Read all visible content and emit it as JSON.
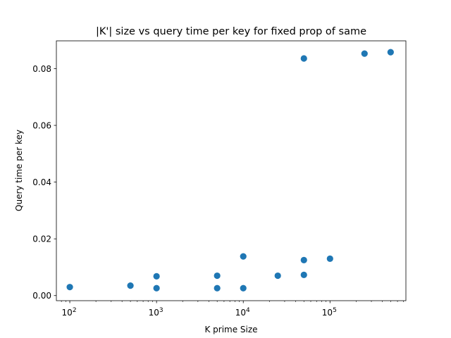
{
  "chart_data": {
    "type": "scatter",
    "title": "|K'| size vs query time per key for fixed prop of same",
    "xlabel": "K prime Size",
    "ylabel": "Query time per key",
    "xscale": "log",
    "xlim": [
      70,
      750000
    ],
    "ylim": [
      -0.0018,
      0.0898
    ],
    "grid": false,
    "point_color": "#1f77b4",
    "x_ticks": [
      {
        "value": 100,
        "base": "10",
        "exp": "2"
      },
      {
        "value": 1000,
        "base": "10",
        "exp": "3"
      },
      {
        "value": 10000,
        "base": "10",
        "exp": "4"
      },
      {
        "value": 100000,
        "base": "10",
        "exp": "5"
      }
    ],
    "y_ticks": [
      {
        "value": 0.0,
        "label": "0.00"
      },
      {
        "value": 0.02,
        "label": "0.02"
      },
      {
        "value": 0.04,
        "label": "0.04"
      },
      {
        "value": 0.06,
        "label": "0.06"
      },
      {
        "value": 0.08,
        "label": "0.08"
      }
    ],
    "points": [
      {
        "x": 100,
        "y": 0.003
      },
      {
        "x": 500,
        "y": 0.0035
      },
      {
        "x": 1000,
        "y": 0.0026
      },
      {
        "x": 1000,
        "y": 0.0068
      },
      {
        "x": 5000,
        "y": 0.0026
      },
      {
        "x": 5000,
        "y": 0.007
      },
      {
        "x": 10000,
        "y": 0.0026
      },
      {
        "x": 10000,
        "y": 0.0138
      },
      {
        "x": 25000,
        "y": 0.007
      },
      {
        "x": 50000,
        "y": 0.0073
      },
      {
        "x": 50000,
        "y": 0.0125
      },
      {
        "x": 100000,
        "y": 0.013
      },
      {
        "x": 50000,
        "y": 0.0836
      },
      {
        "x": 250000,
        "y": 0.0853
      },
      {
        "x": 500000,
        "y": 0.0858
      }
    ]
  }
}
